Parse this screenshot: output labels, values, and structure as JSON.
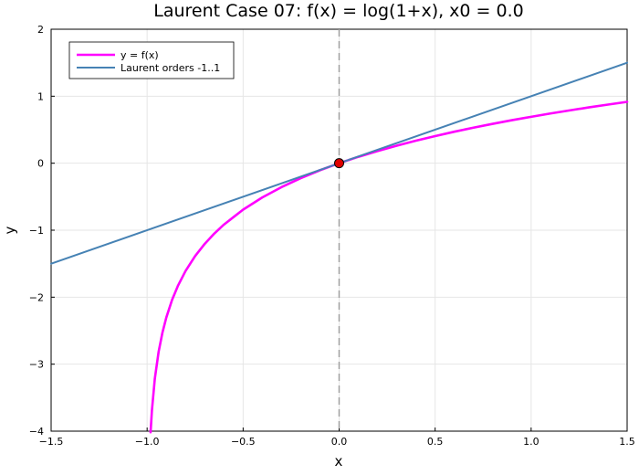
{
  "chart_data": {
    "type": "line",
    "title": "Laurent Case 07: f(x) = log(1+x), x0 = 0.0",
    "xlabel": "x",
    "ylabel": "y",
    "xlim": [
      -1.5,
      1.5
    ],
    "ylim": [
      -4,
      2
    ],
    "xticks": [
      -1.5,
      -1.0,
      -0.5,
      0.0,
      0.5,
      1.0,
      1.5
    ],
    "xtick_labels": [
      "−1.5",
      "−1.0",
      "−0.5",
      "0.0",
      "0.5",
      "1.0",
      "1.5"
    ],
    "yticks": [
      -4,
      -3,
      -2,
      -1,
      0,
      1,
      2
    ],
    "ytick_labels": [
      "−4",
      "−3",
      "−2",
      "−1",
      "0",
      "1",
      "2"
    ],
    "grid": true,
    "legend_position": "top-left",
    "series": [
      {
        "name": "y = f(x)",
        "color": "#ff00ff",
        "x": [
          -0.982,
          -0.975,
          -0.96,
          -0.94,
          -0.92,
          -0.9,
          -0.87,
          -0.84,
          -0.8,
          -0.75,
          -0.7,
          -0.65,
          -0.6,
          -0.5,
          -0.4,
          -0.3,
          -0.2,
          -0.1,
          0.0,
          0.1,
          0.2,
          0.3,
          0.4,
          0.5,
          0.6,
          0.7,
          0.8,
          0.9,
          1.0,
          1.1,
          1.2,
          1.3,
          1.4,
          1.5
        ],
        "y": [
          -4.017,
          -3.689,
          -3.219,
          -2.813,
          -2.526,
          -2.303,
          -2.04,
          -1.833,
          -1.609,
          -1.386,
          -1.204,
          -1.05,
          -0.916,
          -0.693,
          -0.511,
          -0.357,
          -0.223,
          -0.105,
          0.0,
          0.095,
          0.182,
          0.262,
          0.336,
          0.405,
          0.47,
          0.531,
          0.588,
          0.642,
          0.693,
          0.742,
          0.788,
          0.833,
          0.875,
          0.916
        ]
      },
      {
        "name": "Laurent orders -1..1",
        "color": "#4682b4",
        "x": [
          -1.5,
          1.5
        ],
        "y": [
          -1.5,
          1.5
        ]
      }
    ],
    "vertical_line": {
      "x": 0.0,
      "color": "#a0a0a0",
      "style": "dashed"
    },
    "marker": {
      "x": 0.0,
      "y": 0.0,
      "color": "#e00000"
    }
  }
}
